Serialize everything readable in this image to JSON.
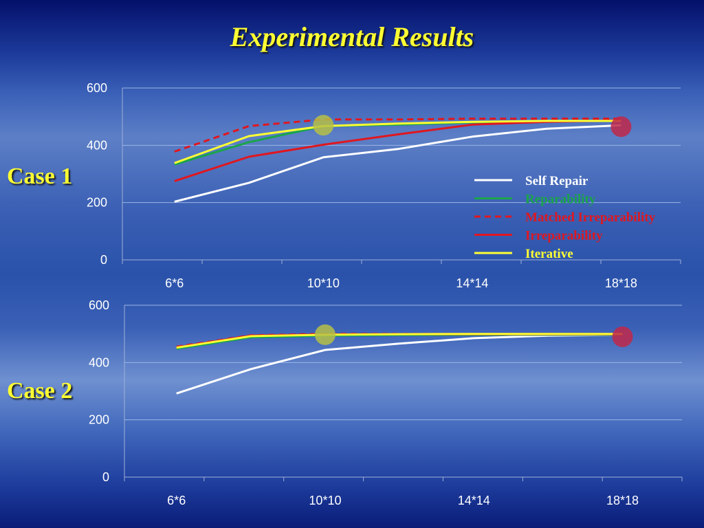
{
  "title": "Experimental Results",
  "legend": [
    {
      "label": "Self Repair",
      "color": "#ffffff",
      "dashed": false
    },
    {
      "label": "Reparability",
      "color": "#1aa54a",
      "dashed": false
    },
    {
      "label": "Matched Irreparability",
      "color": "#e0171f",
      "dashed": true
    },
    {
      "label": "Irreparability",
      "color": "#e0171f",
      "dashed": false
    },
    {
      "label": "Iterative",
      "color": "#ffff33",
      "dashed": false
    }
  ],
  "chart_data": [
    {
      "type": "line",
      "case_label": "Case 1",
      "x": [
        6,
        8,
        10,
        12,
        14,
        16,
        18
      ],
      "x_tick_labels": [
        "6*6",
        "10*10",
        "14*14",
        "18*18"
      ],
      "x_tick_values": [
        6,
        10,
        14,
        18
      ],
      "y_ticks": [
        "0",
        "200",
        "400",
        "600"
      ],
      "ylim": [
        0,
        600
      ],
      "grid": true,
      "legend_position": "right",
      "series": [
        {
          "name": "Self Repair",
          "color": "#ffffff",
          "dashed": false,
          "values": [
            203,
            269,
            358,
            387,
            430,
            458,
            470
          ]
        },
        {
          "name": "Reparability",
          "color": "#1aa54a",
          "dashed": false,
          "values": [
            333,
            411,
            467,
            472,
            480,
            485,
            485
          ]
        },
        {
          "name": "Matched Irreparability",
          "color": "#e0171f",
          "dashed": true,
          "values": [
            378,
            467,
            490,
            490,
            493,
            493,
            493
          ]
        },
        {
          "name": "Irreparability",
          "color": "#e0171f",
          "dashed": false,
          "values": [
            275,
            360,
            402,
            438,
            472,
            482,
            487
          ]
        },
        {
          "name": "Iterative",
          "color": "#ffff33",
          "dashed": false,
          "values": [
            338,
            432,
            467,
            476,
            482,
            485,
            485
          ]
        }
      ],
      "markers": [
        {
          "x": 10,
          "y": 470,
          "color": "#b5bf46"
        },
        {
          "x": 18,
          "y": 465,
          "color": "#c0284a"
        }
      ]
    },
    {
      "type": "line",
      "case_label": "Case 2",
      "x": [
        6,
        8,
        10,
        12,
        14,
        16,
        18
      ],
      "x_tick_labels": [
        "6*6",
        "10*10",
        "14*14",
        "18*18"
      ],
      "x_tick_values": [
        6,
        10,
        14,
        18
      ],
      "y_ticks": [
        "0",
        "200",
        "400",
        "600"
      ],
      "ylim": [
        0,
        600
      ],
      "grid": true,
      "legend_position": "none",
      "series": [
        {
          "name": "Self Repair",
          "color": "#ffffff",
          "dashed": false,
          "values": [
            292,
            377,
            444,
            466,
            485,
            494,
            497
          ]
        },
        {
          "name": "Reparability",
          "color": "#1aa54a",
          "dashed": false,
          "values": [
            448,
            488,
            494,
            496,
            497,
            497,
            497
          ]
        },
        {
          "name": "Matched Irreparability",
          "color": "#e0171f",
          "dashed": true,
          "values": [
            455,
            495,
            500,
            500,
            500,
            500,
            500
          ]
        },
        {
          "name": "Irreparability",
          "color": "#e0171f",
          "dashed": false,
          "values": [
            453,
            494,
            498,
            499,
            499,
            499,
            499
          ]
        },
        {
          "name": "Iterative",
          "color": "#ffff33",
          "dashed": false,
          "values": [
            452,
            492,
            497,
            499,
            500,
            500,
            500
          ]
        }
      ],
      "markers": [
        {
          "x": 10,
          "y": 497,
          "color": "#b5bf46"
        },
        {
          "x": 18,
          "y": 490,
          "color": "#c0284a"
        }
      ]
    }
  ]
}
